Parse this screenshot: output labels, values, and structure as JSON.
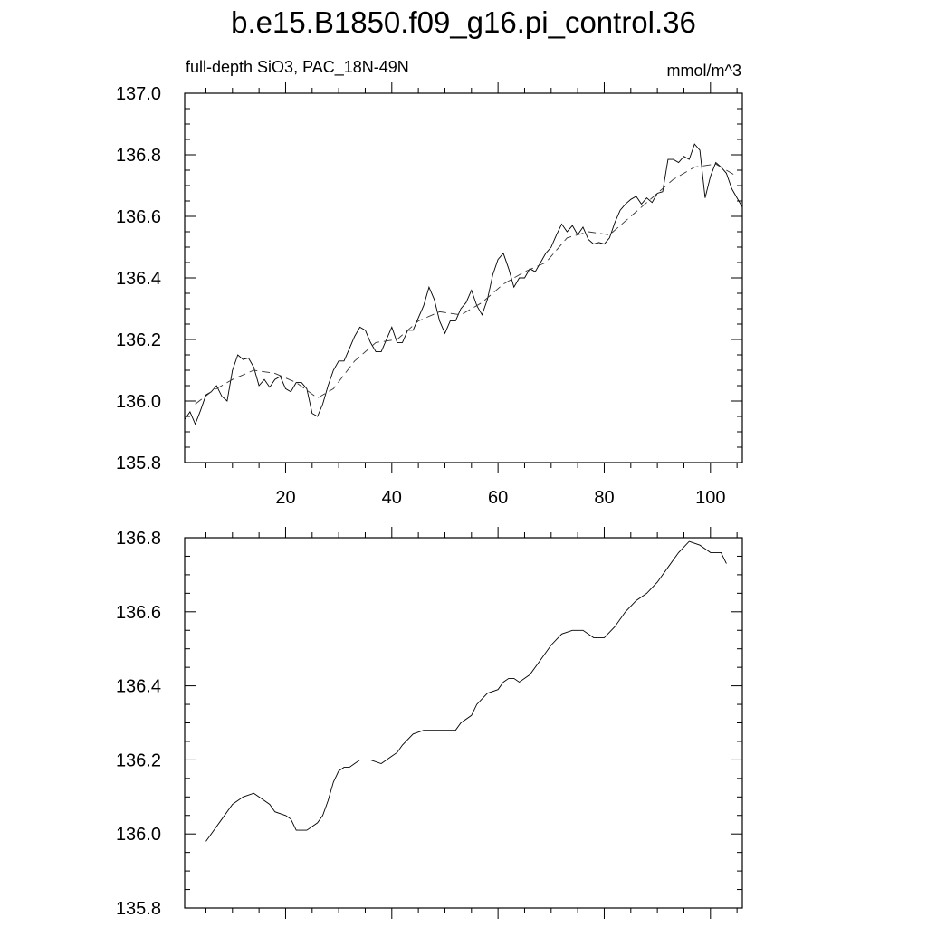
{
  "header": {
    "title": "b.e15.B1850.f09_g16.pi_control.36",
    "subtitle_left": "full-depth SiO3, PAC_18N-49N",
    "subtitle_right": "mmol/m^3"
  },
  "chart_data": [
    {
      "type": "line",
      "xlim": [
        1,
        106
      ],
      "ylim": [
        135.8,
        137.0
      ],
      "xticks": [
        20,
        40,
        60,
        80,
        100
      ],
      "yticks": [
        135.8,
        136.0,
        136.2,
        136.4,
        136.6,
        136.8,
        137.0
      ],
      "ytick_labels": [
        "135.8",
        "136.0",
        "136.2",
        "136.4",
        "136.6",
        "136.8",
        "137.0"
      ],
      "xtick_labels": [
        "20",
        "40",
        "60",
        "80",
        "100"
      ],
      "grid": false,
      "series": [
        {
          "style": "solid",
          "x": [
            1,
            2,
            3,
            4,
            5,
            6,
            7,
            8,
            9,
            10,
            11,
            12,
            13,
            14,
            15,
            16,
            17,
            18,
            19,
            20,
            21,
            22,
            23,
            24,
            25,
            26,
            27,
            28,
            29,
            30,
            31,
            32,
            33,
            34,
            35,
            36,
            37,
            38,
            39,
            40,
            41,
            42,
            43,
            44,
            45,
            46,
            47,
            48,
            49,
            50,
            51,
            52,
            53,
            54,
            55,
            56,
            57,
            58,
            59,
            60,
            61,
            62,
            63,
            64,
            65,
            66,
            67,
            68,
            69,
            70,
            71,
            72,
            73,
            74,
            75,
            76,
            77,
            78,
            79,
            80,
            81,
            82,
            83,
            84,
            85,
            86,
            87,
            88,
            89,
            90,
            91,
            92,
            93,
            94,
            95,
            96,
            97,
            98,
            99,
            100,
            101,
            102,
            103,
            104,
            105,
            106
          ],
          "y": [
            135.94,
            135.965,
            135.925,
            135.97,
            136.02,
            136.03,
            136.05,
            136.015,
            136.0,
            136.1,
            136.15,
            136.135,
            136.14,
            136.11,
            136.05,
            136.07,
            136.045,
            136.07,
            136.08,
            136.04,
            136.03,
            136.06,
            136.06,
            136.04,
            135.96,
            135.95,
            135.99,
            136.05,
            136.1,
            136.13,
            136.13,
            136.17,
            136.21,
            136.24,
            136.23,
            136.19,
            136.16,
            136.16,
            136.2,
            136.24,
            136.19,
            136.19,
            136.23,
            136.23,
            136.27,
            136.31,
            136.37,
            136.33,
            136.26,
            136.22,
            136.26,
            136.26,
            136.3,
            136.32,
            136.36,
            136.31,
            136.28,
            136.33,
            136.41,
            136.46,
            136.48,
            136.43,
            136.37,
            136.4,
            136.4,
            136.43,
            136.42,
            136.45,
            136.48,
            136.5,
            136.54,
            136.575,
            136.55,
            136.57,
            136.54,
            136.565,
            136.525,
            136.51,
            136.515,
            136.51,
            136.53,
            136.58,
            136.62,
            136.64,
            136.655,
            136.665,
            136.64,
            136.66,
            136.645,
            136.675,
            136.68,
            136.785,
            136.785,
            136.775,
            136.795,
            136.785,
            136.835,
            136.815,
            136.66,
            136.73,
            136.775,
            136.76,
            136.74,
            136.69,
            136.66,
            136.63
          ]
        },
        {
          "style": "dashed",
          "x": [
            3,
            6,
            10,
            14,
            18,
            22,
            26,
            29,
            33,
            37,
            41,
            45,
            49,
            53,
            57,
            61,
            65,
            69,
            73,
            77,
            81,
            85,
            89,
            93,
            97,
            101,
            105
          ],
          "y": [
            135.99,
            136.03,
            136.07,
            136.1,
            136.09,
            136.06,
            136.01,
            136.04,
            136.13,
            136.19,
            136.2,
            136.26,
            136.29,
            136.28,
            136.32,
            136.38,
            136.42,
            136.45,
            136.53,
            136.55,
            136.54,
            136.6,
            136.66,
            136.72,
            136.76,
            136.77,
            136.73
          ]
        }
      ]
    },
    {
      "type": "line",
      "xlim": [
        1,
        106
      ],
      "ylim": [
        135.8,
        136.8
      ],
      "xticks": [
        20,
        40,
        60,
        80,
        100
      ],
      "yticks": [
        135.8,
        136.0,
        136.2,
        136.4,
        136.6,
        136.8
      ],
      "ytick_labels": [
        "135.8",
        "136.0",
        "136.2",
        "136.4",
        "136.6",
        "136.8"
      ],
      "grid": false,
      "series": [
        {
          "style": "solid",
          "x": [
            5,
            6,
            8,
            10,
            12,
            14,
            15,
            17,
            18,
            20,
            21,
            22,
            24,
            26,
            27,
            28,
            29,
            30,
            31,
            32,
            33,
            34,
            36,
            38,
            40,
            41,
            42,
            44,
            46,
            47,
            48,
            50,
            52,
            53,
            55,
            56,
            58,
            60,
            61,
            62,
            63,
            64,
            66,
            68,
            70,
            72,
            74,
            76,
            78,
            80,
            82,
            84,
            86,
            88,
            90,
            92,
            94,
            96,
            98,
            99,
            100,
            102,
            103
          ],
          "y": [
            135.98,
            136.0,
            136.04,
            136.08,
            136.1,
            136.11,
            136.1,
            136.08,
            136.06,
            136.05,
            136.04,
            136.01,
            136.01,
            136.03,
            136.05,
            136.09,
            136.14,
            136.17,
            136.18,
            136.18,
            136.19,
            136.2,
            136.2,
            136.19,
            136.21,
            136.22,
            136.24,
            136.27,
            136.28,
            136.28,
            136.28,
            136.28,
            136.28,
            136.3,
            136.32,
            136.35,
            136.38,
            136.39,
            136.41,
            136.42,
            136.42,
            136.41,
            136.43,
            136.47,
            136.51,
            136.54,
            136.55,
            136.55,
            136.53,
            136.53,
            136.56,
            136.6,
            136.63,
            136.65,
            136.68,
            136.72,
            136.76,
            136.79,
            136.78,
            136.77,
            136.76,
            136.76,
            136.73
          ]
        }
      ]
    }
  ]
}
